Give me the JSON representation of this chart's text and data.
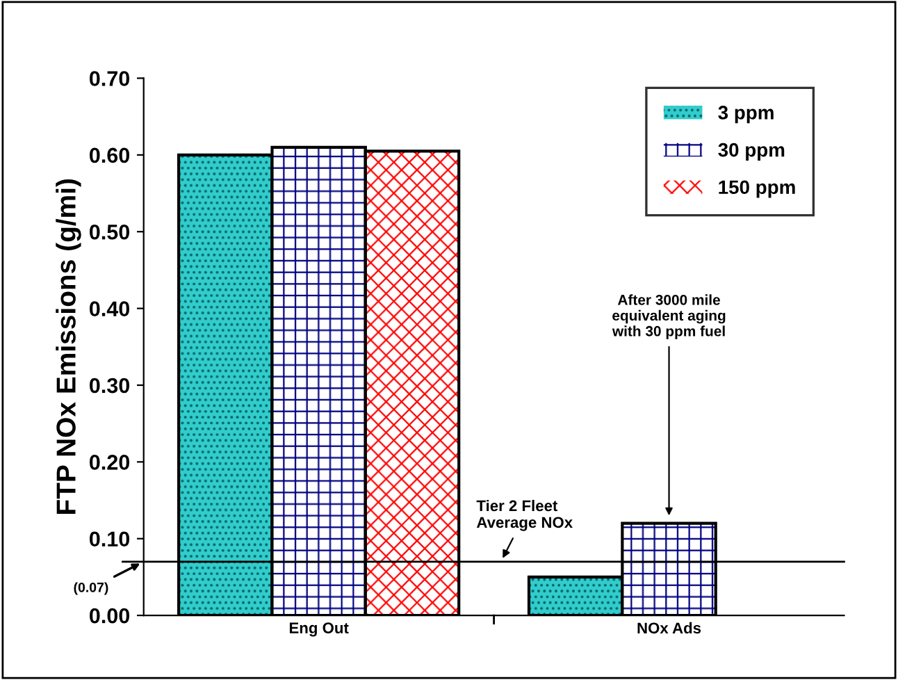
{
  "chart_data": {
    "type": "bar",
    "ylabel": "FTP NOx Emissions (g/mi)",
    "categories": [
      "Eng Out",
      "NOx Ads"
    ],
    "series": [
      {
        "name": "3 ppm",
        "color": "#33cccc",
        "values": [
          0.6,
          0.05
        ]
      },
      {
        "name": "30 ppm",
        "color": "#000080",
        "values": [
          0.61,
          0.12
        ]
      },
      {
        "name": "150 ppm",
        "color": "#ff0000",
        "values": [
          0.605,
          null
        ]
      }
    ],
    "ylim": [
      0,
      0.7
    ],
    "yticks": [
      {
        "value": 0,
        "label": "0.00"
      },
      {
        "value": 0.1,
        "label": "0.10"
      },
      {
        "value": 0.2,
        "label": "0.20"
      },
      {
        "value": 0.3,
        "label": "0.30"
      },
      {
        "value": 0.4,
        "label": "0.40"
      },
      {
        "value": 0.5,
        "label": "0.50"
      },
      {
        "value": 0.6,
        "label": "0.60"
      },
      {
        "value": 0.7,
        "label": "0.70"
      }
    ],
    "ref_lines": [
      {
        "axis": "y",
        "value": 0.07,
        "label": "(0.07)",
        "color": "#000000"
      }
    ],
    "annotations": [
      {
        "text": "Tier 2 Fleet\nAverage NOx",
        "y": 0.07
      },
      {
        "text": "After 3000 mile\nequivalent aging\nwith 30 ppm fuel",
        "x": "NOx Ads",
        "y": 0.12
      }
    ],
    "legend": "top right",
    "grid": false
  }
}
